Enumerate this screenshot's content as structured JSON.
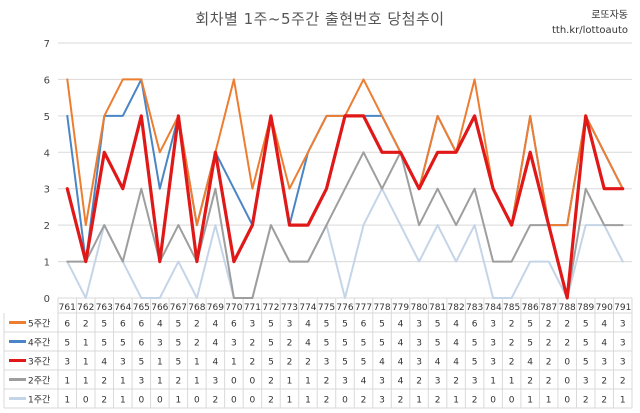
{
  "header": {
    "title": "회차별 1주~5주간 출현번호 당첨추이",
    "brand_name": "로또자동",
    "brand_url": "tth.kr/lottoauto"
  },
  "chart_data": {
    "type": "line",
    "title": "회차별 1주~5주간 출현번호 당첨추이",
    "categories": [
      "761",
      "762",
      "763",
      "764",
      "765",
      "766",
      "767",
      "768",
      "769",
      "770",
      "771",
      "772",
      "773",
      "774",
      "775",
      "776",
      "777",
      "778",
      "779",
      "780",
      "781",
      "782",
      "783",
      "784",
      "785",
      "786",
      "787",
      "788",
      "789",
      "790",
      "791"
    ],
    "ylim": [
      0,
      7
    ],
    "yticks": [
      0,
      1,
      2,
      3,
      4,
      5,
      6,
      7
    ],
    "grid": true,
    "legend": "table-below",
    "series": [
      {
        "name": "5주간",
        "color": "#ED7D31",
        "width": 2,
        "values": [
          6,
          2,
          5,
          6,
          6,
          4,
          5,
          2,
          4,
          6,
          3,
          5,
          3,
          4,
          5,
          5,
          6,
          5,
          4,
          3,
          5,
          4,
          6,
          3,
          2,
          5,
          2,
          2,
          5,
          4,
          3
        ]
      },
      {
        "name": "4주간",
        "color": "#4A86C5",
        "width": 2,
        "values": [
          5,
          1,
          5,
          5,
          6,
          3,
          5,
          2,
          4,
          3,
          2,
          5,
          2,
          4,
          5,
          5,
          5,
          5,
          4,
          3,
          5,
          4,
          5,
          3,
          2,
          5,
          2,
          2,
          5,
          4,
          3
        ]
      },
      {
        "name": "3주간",
        "color": "#E01818",
        "width": 3.2,
        "values": [
          3,
          1,
          4,
          3,
          5,
          1,
          5,
          1,
          4,
          1,
          2,
          5,
          2,
          2,
          3,
          5,
          5,
          4,
          4,
          3,
          4,
          4,
          5,
          3,
          2,
          4,
          2,
          0,
          5,
          3,
          3
        ]
      },
      {
        "name": "2주간",
        "color": "#9E9E9E",
        "width": 2,
        "values": [
          1,
          1,
          2,
          1,
          3,
          1,
          2,
          1,
          3,
          0,
          0,
          2,
          1,
          1,
          2,
          3,
          4,
          3,
          4,
          2,
          3,
          2,
          3,
          1,
          1,
          2,
          2,
          0,
          3,
          2,
          2
        ]
      },
      {
        "name": "1주간",
        "color": "#C5D5E8",
        "width": 2,
        "values": [
          1,
          0,
          2,
          1,
          0,
          0,
          1,
          0,
          2,
          0,
          0,
          2,
          1,
          1,
          2,
          0,
          2,
          3,
          2,
          1,
          2,
          1,
          2,
          0,
          0,
          1,
          1,
          0,
          2,
          2,
          1
        ]
      }
    ]
  }
}
